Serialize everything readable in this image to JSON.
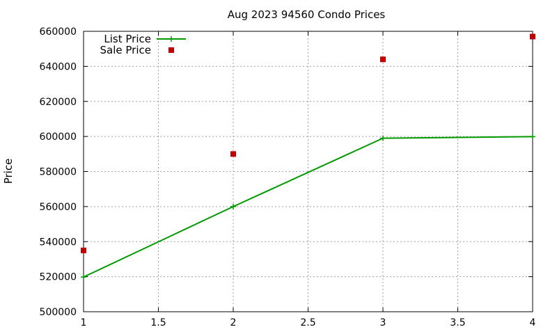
{
  "chart_data": {
    "type": "line",
    "title": "Aug 2023 94560 Condo Prices",
    "xlabel": "",
    "ylabel": "Price",
    "xlim": [
      1,
      4
    ],
    "ylim": [
      500000,
      660000
    ],
    "xticks": [
      1,
      1.5,
      2,
      2.5,
      3,
      3.5,
      4
    ],
    "yticks": [
      500000,
      520000,
      540000,
      560000,
      580000,
      600000,
      620000,
      640000,
      660000
    ],
    "grid": true,
    "legend_position": "top-left",
    "series": [
      {
        "name": "List Price",
        "style": "line-with-plus-markers",
        "color": "#009900",
        "points": [
          [
            1,
            519800
          ],
          [
            2,
            560000
          ],
          [
            3,
            599000
          ],
          [
            4,
            599900
          ]
        ]
      },
      {
        "name": "Sale Price",
        "style": "square-markers",
        "color": "#c00000",
        "points": [
          [
            1,
            535000
          ],
          [
            2,
            590000
          ],
          [
            3,
            644000
          ],
          [
            4,
            657000
          ]
        ]
      }
    ]
  }
}
